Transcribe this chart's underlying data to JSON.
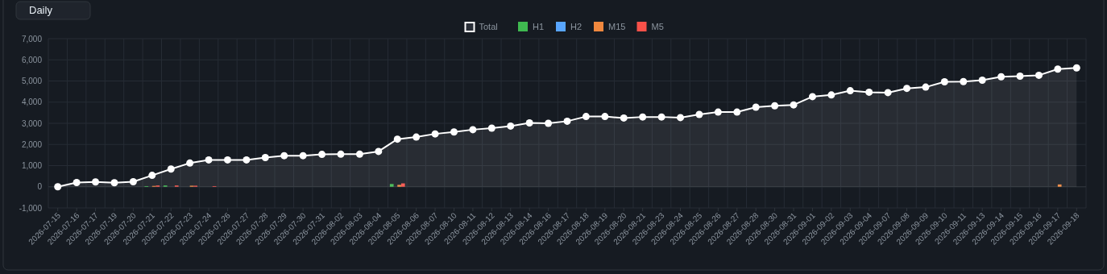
{
  "chart_data": {
    "type": "bar",
    "annotations": [
      "Daily"
    ],
    "categories": [
      "2026-07-15",
      "2026-07-16",
      "2026-07-17",
      "2026-07-19",
      "2026-07-20",
      "2026-07-21",
      "2026-07-22",
      "2026-07-23",
      "2026-07-24",
      "2026-07-26",
      "2026-07-27",
      "2026-07-28",
      "2026-07-29",
      "2026-07-30",
      "2026-07-31",
      "2026-08-02",
      "2026-08-03",
      "2026-08-04",
      "2026-08-05",
      "2026-08-06",
      "2026-08-07",
      "2026-08-10",
      "2026-08-11",
      "2026-08-12",
      "2026-08-13",
      "2026-08-14",
      "2026-08-16",
      "2026-08-17",
      "2026-08-18",
      "2026-08-19",
      "2026-08-20",
      "2026-08-21",
      "2026-08-23",
      "2026-08-24",
      "2026-08-25",
      "2026-08-26",
      "2026-08-27",
      "2026-08-28",
      "2026-08-30",
      "2026-08-31",
      "2026-09-01",
      "2026-09-02",
      "2026-09-03",
      "2026-09-04",
      "2026-09-07",
      "2026-09-08",
      "2026-09-09",
      "2026-09-10",
      "2026-09-11",
      "2026-09-13",
      "2026-09-14",
      "2026-09-15",
      "2026-09-16",
      "2026-09-17",
      "2026-09-18"
    ],
    "series": [
      {
        "name": "Total",
        "type": "area",
        "color": "#ffffff",
        "marker": "circle",
        "line_style": "solid",
        "values": [
          0,
          200,
          230,
          190,
          240,
          540,
          840,
          1120,
          1270,
          1270,
          1270,
          1380,
          1470,
          1470,
          1530,
          1540,
          1540,
          1670,
          2250,
          2350,
          2500,
          2590,
          2700,
          2770,
          2870,
          3020,
          3000,
          3100,
          3320,
          3320,
          3250,
          3300,
          3300,
          3270,
          3420,
          3530,
          3530,
          3760,
          3830,
          3870,
          4260,
          4340,
          4540,
          4470,
          4450,
          4650,
          4710,
          4960,
          4970,
          5040,
          5200,
          5230,
          5270,
          5560,
          5620
        ]
      },
      {
        "name": "H1",
        "color": "#3fb950",
        "values": [
          0,
          0,
          0,
          0,
          0,
          30,
          60,
          0,
          0,
          0,
          0,
          0,
          0,
          0,
          0,
          0,
          0,
          0,
          130,
          0,
          0,
          0,
          0,
          0,
          0,
          0,
          0,
          0,
          0,
          0,
          0,
          0,
          0,
          0,
          0,
          0,
          0,
          0,
          0,
          0,
          0,
          0,
          0,
          0,
          0,
          0,
          0,
          0,
          0,
          0,
          0,
          0,
          0,
          0,
          0
        ]
      },
      {
        "name": "H2",
        "color": "#58a6ff",
        "values": [
          0,
          0,
          0,
          0,
          0,
          0,
          0,
          0,
          0,
          0,
          0,
          0,
          0,
          0,
          0,
          0,
          0,
          0,
          0,
          0,
          0,
          0,
          0,
          0,
          0,
          0,
          0,
          0,
          0,
          0,
          0,
          0,
          0,
          0,
          0,
          0,
          0,
          0,
          0,
          0,
          0,
          0,
          0,
          0,
          0,
          0,
          0,
          0,
          0,
          0,
          0,
          0,
          0,
          0,
          0
        ]
      },
      {
        "name": "M15",
        "color": "#f0883e",
        "values": [
          0,
          0,
          0,
          0,
          0,
          40,
          0,
          50,
          0,
          0,
          0,
          0,
          0,
          0,
          0,
          0,
          0,
          0,
          90,
          0,
          0,
          0,
          0,
          0,
          0,
          0,
          0,
          0,
          0,
          0,
          0,
          0,
          0,
          0,
          0,
          0,
          0,
          0,
          0,
          0,
          0,
          0,
          0,
          0,
          0,
          0,
          0,
          0,
          0,
          0,
          0,
          0,
          0,
          110,
          0
        ]
      },
      {
        "name": "M5",
        "color": "#f85149",
        "values": [
          0,
          0,
          0,
          0,
          0,
          60,
          60,
          50,
          30,
          0,
          0,
          0,
          0,
          0,
          0,
          0,
          0,
          0,
          160,
          0,
          0,
          0,
          0,
          0,
          0,
          0,
          0,
          0,
          0,
          0,
          0,
          0,
          0,
          0,
          0,
          0,
          0,
          0,
          0,
          0,
          0,
          0,
          0,
          0,
          0,
          0,
          0,
          0,
          0,
          0,
          0,
          0,
          0,
          0,
          0
        ]
      }
    ],
    "ylim": [
      -1000,
      7000
    ],
    "yticks": [
      {
        "value": -1000,
        "label": "-1,000"
      },
      0,
      {
        "value": 1000,
        "label": "1,000"
      },
      {
        "value": 2000,
        "label": "2,000"
      },
      {
        "value": 3000,
        "label": "3,000"
      },
      {
        "value": 4000,
        "label": "4,000"
      },
      {
        "value": 5000,
        "label": "5,000"
      },
      {
        "value": 6000,
        "label": "6,000"
      },
      {
        "value": 7000,
        "label": "7,000"
      }
    ],
    "grid": true,
    "legend": "top"
  }
}
